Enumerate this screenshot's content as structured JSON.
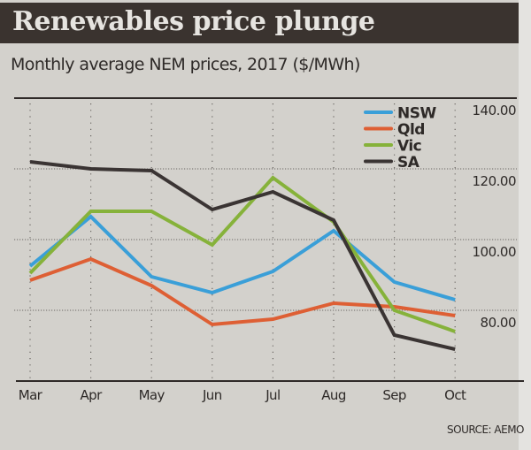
{
  "title": "Renewables price plunge",
  "subtitle": "Monthly average NEM prices, 2017  ($/MWh)",
  "source": "SOURCE: AEMO",
  "chart_data": {
    "type": "line",
    "title": "Renewables price plunge",
    "subtitle": "Monthly average NEM prices, 2017 ($/MWh)",
    "xlabel": "",
    "ylabel": "$/MWh",
    "categories": [
      "Mar",
      "Apr",
      "May",
      "Jun",
      "Jul",
      "Aug",
      "Sep",
      "Oct"
    ],
    "ylim": [
      60,
      140
    ],
    "yticks": [
      {
        "value": 140,
        "label": "140.00"
      },
      {
        "value": 120,
        "label": "120.00"
      },
      {
        "value": 100,
        "label": "100.00"
      },
      {
        "value": 80,
        "label": "80.00"
      }
    ],
    "grid": true,
    "legend_position": "top-right",
    "series": [
      {
        "name": "NSW",
        "color": "#3a9fd8",
        "values": [
          92.5,
          106.5,
          89.5,
          85,
          91,
          102.5,
          88,
          83
        ]
      },
      {
        "name": "Qld",
        "color": "#de5f34",
        "values": [
          88.5,
          94.5,
          87,
          76,
          77.5,
          82,
          81,
          78.5
        ]
      },
      {
        "name": "Vic",
        "color": "#86b23a",
        "values": [
          90.5,
          108,
          108,
          98.5,
          117.5,
          105,
          80,
          74
        ]
      },
      {
        "name": "SA",
        "color": "#3a3433",
        "values": [
          122,
          120,
          119.5,
          108.5,
          113.5,
          105.5,
          73,
          69
        ]
      }
    ],
    "source": "SOURCE: AEMO"
  }
}
